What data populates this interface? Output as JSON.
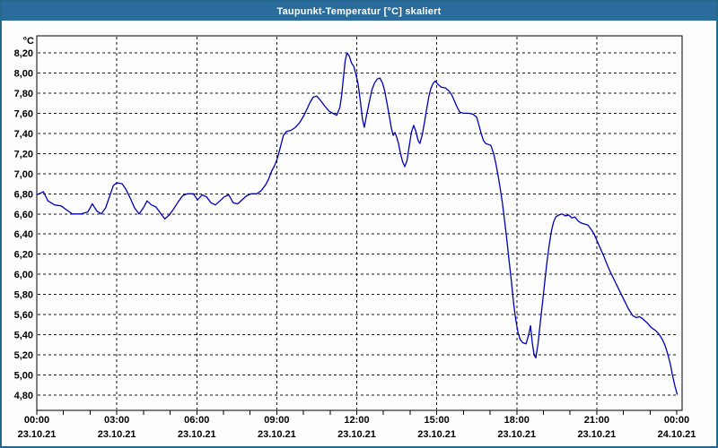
{
  "window": {
    "title": "Taupunkt-Temperatur [°C] skaliert"
  },
  "colors": {
    "titlebar_bg": "#2A6D9C",
    "window_border": "#26678F",
    "title_text": "#FFFFFF",
    "line": "#0000B8",
    "grid": "#141414",
    "frame": "#000000",
    "label": "#000000",
    "background": "#FDFDFD"
  },
  "chart_data": {
    "type": "line",
    "title": "Taupunkt-Temperatur [°C] skaliert",
    "ylabel": "°C",
    "y_axis": {
      "min": 4.8,
      "max": 8.2,
      "step": 0.2,
      "tick_labels": [
        "4,80",
        "5,00",
        "5,20",
        "5,40",
        "5,60",
        "5,80",
        "6,00",
        "6,20",
        "6,40",
        "6,60",
        "6,80",
        "7,00",
        "7,20",
        "7,40",
        "7,60",
        "7,80",
        "8,00",
        "8,20"
      ]
    },
    "x_axis": {
      "total_minutes": 1440,
      "minor_tick_minutes": 60,
      "gridline_minutes": 180,
      "labels": [
        {
          "time": "00:00",
          "date": "23.10.21",
          "t": 0
        },
        {
          "time": "03:00",
          "date": "23.10.21",
          "t": 180
        },
        {
          "time": "06:00",
          "date": "23.10.21",
          "t": 360
        },
        {
          "time": "09:00",
          "date": "23.10.21",
          "t": 540
        },
        {
          "time": "12:00",
          "date": "23.10.21",
          "t": 720
        },
        {
          "time": "15:00",
          "date": "23.10.21",
          "t": 900
        },
        {
          "time": "18:00",
          "date": "23.10.21",
          "t": 1080
        },
        {
          "time": "21:00",
          "date": "23.10.21",
          "t": 1260
        },
        {
          "time": "00:00",
          "date": "24.10.21",
          "t": 1440
        }
      ]
    },
    "grid": true,
    "legend": "none",
    "series": [
      {
        "name": "Taupunkt-Temperatur",
        "points": [
          [
            0,
            6.79
          ],
          [
            10,
            6.81
          ],
          [
            15,
            6.82
          ],
          [
            25,
            6.73
          ],
          [
            40,
            6.69
          ],
          [
            55,
            6.68
          ],
          [
            70,
            6.63
          ],
          [
            80,
            6.6
          ],
          [
            100,
            6.6
          ],
          [
            115,
            6.62
          ],
          [
            125,
            6.7
          ],
          [
            135,
            6.63
          ],
          [
            145,
            6.6
          ],
          [
            155,
            6.66
          ],
          [
            165,
            6.79
          ],
          [
            172,
            6.88
          ],
          [
            180,
            6.91
          ],
          [
            192,
            6.9
          ],
          [
            200,
            6.85
          ],
          [
            210,
            6.76
          ],
          [
            220,
            6.66
          ],
          [
            230,
            6.6
          ],
          [
            240,
            6.66
          ],
          [
            248,
            6.73
          ],
          [
            258,
            6.69
          ],
          [
            268,
            6.67
          ],
          [
            278,
            6.61
          ],
          [
            288,
            6.55
          ],
          [
            298,
            6.59
          ],
          [
            308,
            6.65
          ],
          [
            318,
            6.72
          ],
          [
            328,
            6.78
          ],
          [
            338,
            6.8
          ],
          [
            352,
            6.8
          ],
          [
            362,
            6.74
          ],
          [
            372,
            6.79
          ],
          [
            382,
            6.77
          ],
          [
            392,
            6.71
          ],
          [
            402,
            6.69
          ],
          [
            412,
            6.73
          ],
          [
            422,
            6.77
          ],
          [
            432,
            6.79
          ],
          [
            442,
            6.71
          ],
          [
            452,
            6.7
          ],
          [
            462,
            6.74
          ],
          [
            472,
            6.78
          ],
          [
            482,
            6.8
          ],
          [
            495,
            6.8
          ],
          [
            505,
            6.83
          ],
          [
            515,
            6.89
          ],
          [
            522,
            6.95
          ],
          [
            528,
            7.02
          ],
          [
            535,
            7.08
          ],
          [
            542,
            7.16
          ],
          [
            548,
            7.26
          ],
          [
            555,
            7.38
          ],
          [
            562,
            7.42
          ],
          [
            572,
            7.43
          ],
          [
            582,
            7.46
          ],
          [
            592,
            7.51
          ],
          [
            600,
            7.57
          ],
          [
            608,
            7.64
          ],
          [
            615,
            7.71
          ],
          [
            622,
            7.76
          ],
          [
            630,
            7.77
          ],
          [
            638,
            7.73
          ],
          [
            648,
            7.67
          ],
          [
            658,
            7.62
          ],
          [
            666,
            7.6
          ],
          [
            675,
            7.58
          ],
          [
            682,
            7.66
          ],
          [
            686,
            7.78
          ],
          [
            690,
            7.95
          ],
          [
            694,
            8.12
          ],
          [
            698,
            8.2
          ],
          [
            703,
            8.17
          ],
          [
            708,
            8.1
          ],
          [
            713,
            8.07
          ],
          [
            718,
            7.99
          ],
          [
            723,
            7.89
          ],
          [
            728,
            7.72
          ],
          [
            733,
            7.54
          ],
          [
            737,
            7.46
          ],
          [
            742,
            7.58
          ],
          [
            748,
            7.71
          ],
          [
            754,
            7.83
          ],
          [
            760,
            7.9
          ],
          [
            766,
            7.94
          ],
          [
            772,
            7.95
          ],
          [
            778,
            7.9
          ],
          [
            783,
            7.82
          ],
          [
            788,
            7.7
          ],
          [
            793,
            7.58
          ],
          [
            798,
            7.45
          ],
          [
            802,
            7.38
          ],
          [
            806,
            7.41
          ],
          [
            810,
            7.36
          ],
          [
            814,
            7.3
          ],
          [
            818,
            7.21
          ],
          [
            823,
            7.12
          ],
          [
            828,
            7.07
          ],
          [
            833,
            7.13
          ],
          [
            838,
            7.27
          ],
          [
            843,
            7.41
          ],
          [
            848,
            7.48
          ],
          [
            853,
            7.42
          ],
          [
            858,
            7.33
          ],
          [
            862,
            7.3
          ],
          [
            867,
            7.38
          ],
          [
            872,
            7.5
          ],
          [
            877,
            7.63
          ],
          [
            882,
            7.76
          ],
          [
            887,
            7.85
          ],
          [
            892,
            7.9
          ],
          [
            897,
            7.92
          ],
          [
            902,
            7.89
          ],
          [
            910,
            7.86
          ],
          [
            920,
            7.85
          ],
          [
            928,
            7.82
          ],
          [
            934,
            7.78
          ],
          [
            940,
            7.72
          ],
          [
            946,
            7.66
          ],
          [
            952,
            7.61
          ],
          [
            960,
            7.6
          ],
          [
            972,
            7.6
          ],
          [
            982,
            7.59
          ],
          [
            990,
            7.56
          ],
          [
            995,
            7.48
          ],
          [
            1000,
            7.4
          ],
          [
            1005,
            7.33
          ],
          [
            1010,
            7.3
          ],
          [
            1016,
            7.29
          ],
          [
            1022,
            7.28
          ],
          [
            1028,
            7.2
          ],
          [
            1033,
            7.1
          ],
          [
            1038,
            6.98
          ],
          [
            1043,
            6.85
          ],
          [
            1048,
            6.7
          ],
          [
            1053,
            6.52
          ],
          [
            1058,
            6.33
          ],
          [
            1063,
            6.13
          ],
          [
            1068,
            5.93
          ],
          [
            1073,
            5.71
          ],
          [
            1078,
            5.54
          ],
          [
            1083,
            5.42
          ],
          [
            1088,
            5.35
          ],
          [
            1094,
            5.32
          ],
          [
            1101,
            5.31
          ],
          [
            1107,
            5.4
          ],
          [
            1111,
            5.49
          ],
          [
            1115,
            5.32
          ],
          [
            1119,
            5.2
          ],
          [
            1123,
            5.17
          ],
          [
            1128,
            5.31
          ],
          [
            1133,
            5.52
          ],
          [
            1138,
            5.72
          ],
          [
            1143,
            5.92
          ],
          [
            1148,
            6.12
          ],
          [
            1153,
            6.29
          ],
          [
            1158,
            6.43
          ],
          [
            1163,
            6.52
          ],
          [
            1168,
            6.57
          ],
          [
            1175,
            6.59
          ],
          [
            1182,
            6.6
          ],
          [
            1190,
            6.58
          ],
          [
            1197,
            6.59
          ],
          [
            1204,
            6.56
          ],
          [
            1211,
            6.57
          ],
          [
            1218,
            6.53
          ],
          [
            1225,
            6.51
          ],
          [
            1232,
            6.5
          ],
          [
            1240,
            6.49
          ],
          [
            1247,
            6.45
          ],
          [
            1254,
            6.4
          ],
          [
            1261,
            6.33
          ],
          [
            1268,
            6.26
          ],
          [
            1275,
            6.19
          ],
          [
            1283,
            6.1
          ],
          [
            1291,
            6.02
          ],
          [
            1301,
            5.93
          ],
          [
            1311,
            5.84
          ],
          [
            1321,
            5.75
          ],
          [
            1331,
            5.66
          ],
          [
            1341,
            5.59
          ],
          [
            1349,
            5.57
          ],
          [
            1356,
            5.58
          ],
          [
            1363,
            5.56
          ],
          [
            1373,
            5.52
          ],
          [
            1383,
            5.47
          ],
          [
            1393,
            5.44
          ],
          [
            1401,
            5.4
          ],
          [
            1408,
            5.35
          ],
          [
            1414,
            5.29
          ],
          [
            1419,
            5.22
          ],
          [
            1425,
            5.12
          ],
          [
            1430,
            5.01
          ],
          [
            1436,
            4.89
          ],
          [
            1441,
            4.81
          ]
        ]
      }
    ]
  }
}
